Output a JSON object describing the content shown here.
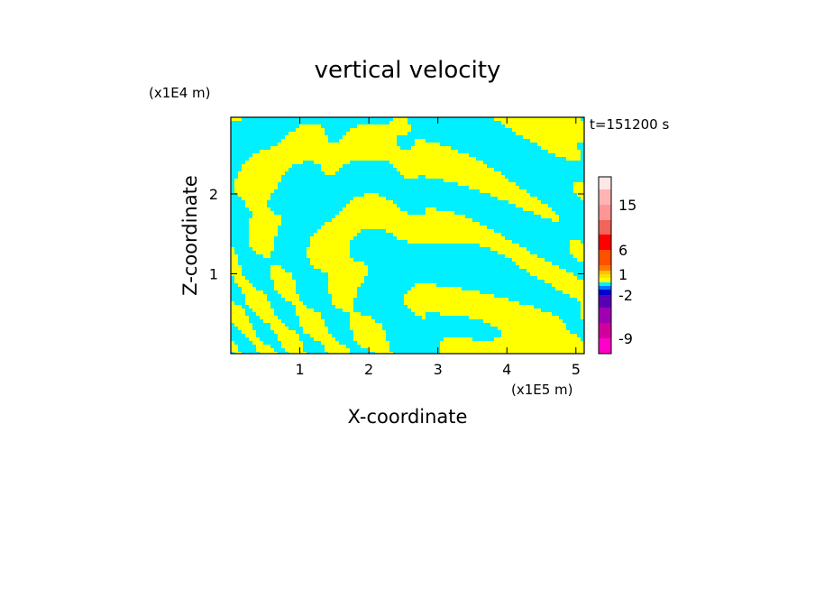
{
  "chart_data": {
    "type": "heatmap",
    "title": "vertical velocity",
    "xlabel": "X-coordinate",
    "ylabel": "Z-coordinate",
    "x_unit": "(x1E5 m)",
    "y_unit": "(x1E4 m)",
    "time_label": "t=151200 s",
    "xlim": [
      0,
      5.12
    ],
    "ylim": [
      0,
      2.96
    ],
    "x_ticks": [
      1,
      2,
      3,
      4,
      5
    ],
    "y_ticks": [
      1,
      2
    ],
    "colorbar": {
      "levels": [
        -12,
        -9,
        -6,
        -4,
        -2,
        -1,
        -0.5,
        0,
        0.5,
        1,
        2,
        4,
        6,
        9,
        12,
        15,
        20,
        25
      ],
      "colors": [
        "#ff00c8",
        "#d2009b",
        "#a000b4",
        "#5a00b4",
        "#0000d2",
        "#0078ff",
        "#00f0ff",
        "#ffff00",
        "#ffe000",
        "#ffc000",
        "#ff7800",
        "#ff5000",
        "#ff0000",
        "#f0645a",
        "#ff9696",
        "#ffb4b4",
        "#ffe6e6"
      ],
      "labels": [
        "15",
        "6",
        "1",
        "-2",
        "-9"
      ],
      "label_values": [
        15,
        6,
        1,
        -2,
        -9
      ]
    },
    "grid": false,
    "legend": "colorbar right"
  }
}
